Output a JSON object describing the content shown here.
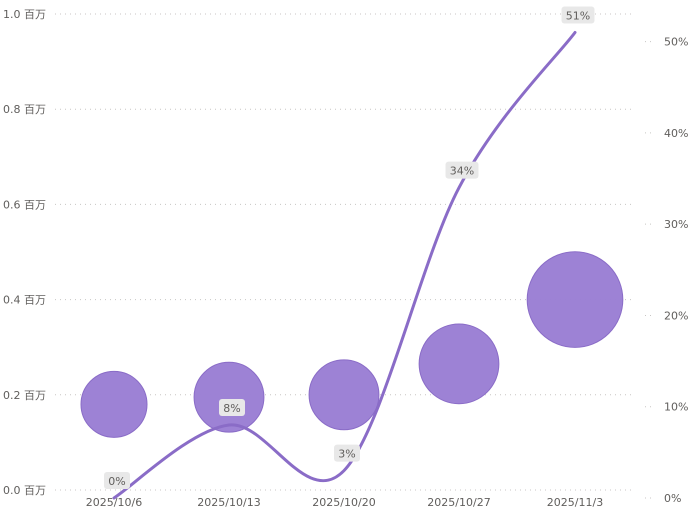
{
  "chart_data": {
    "type": "combo-bubble-line",
    "categories": [
      "2025/10/6",
      "2025/10/13",
      "2025/10/20",
      "2025/10/27",
      "2025/11/3"
    ],
    "bubble_series": {
      "values": [
        0.18,
        0.195,
        0.2,
        0.265,
        0.4
      ],
      "sizes": [
        1.0,
        1.12,
        1.12,
        1.46,
        2.1
      ],
      "color": "#9b7fd4"
    },
    "line_series": {
      "values": [
        0,
        8,
        3,
        34,
        51
      ],
      "labels": [
        "0%",
        "8%",
        "3%",
        "34%",
        "51%"
      ],
      "color": "#8a6cc7"
    },
    "y_left": {
      "ticks": [
        0,
        0.2,
        0.4,
        0.6,
        0.8,
        1.0
      ],
      "tick_labels": [
        "0.0 百万",
        "0.2 百万",
        "0.4 百万",
        "0.6 百万",
        "0.8 百万",
        "1.0 百万"
      ],
      "range": [
        0,
        1.0
      ]
    },
    "y_right": {
      "ticks": [
        0,
        10,
        20,
        30,
        40,
        50
      ],
      "tick_labels": [
        "0%",
        "10%",
        "20%",
        "30%",
        "40%",
        "50%"
      ],
      "range": [
        0,
        55
      ]
    },
    "grid": true
  }
}
